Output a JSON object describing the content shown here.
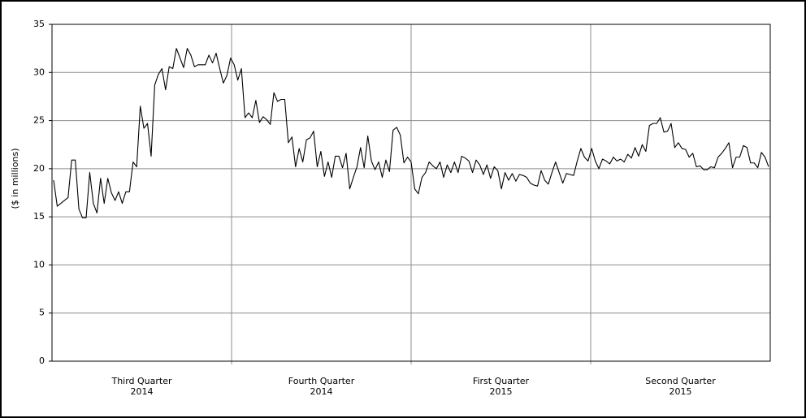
{
  "chart_data": {
    "type": "line",
    "y_label": "($ in millions)",
    "x_labels": [
      "Third Quarter\n2014",
      "Fourth Quarter\n2014",
      "First Quarter\n2015",
      "Second Quarter\n2015"
    ],
    "ylim": [
      0,
      35
    ],
    "yticks": [
      0,
      5,
      10,
      15,
      20,
      25,
      30,
      35
    ],
    "grid": true,
    "color": "#000000",
    "values": [
      18.8,
      16.1,
      16.4,
      16.7,
      17,
      20.9,
      20.9,
      15.8,
      14.9,
      14.9,
      19.6,
      16.4,
      15.4,
      19,
      16.4,
      19,
      17.5,
      16.7,
      17.6,
      16.4,
      17.6,
      17.6,
      20.7,
      20.2,
      26.5,
      24.2,
      24.7,
      21.3,
      28.7,
      29.8,
      30.4,
      28.2,
      30.6,
      30.4,
      32.5,
      31.5,
      30.5,
      32.5,
      31.8,
      30.6,
      30.8,
      30.8,
      30.8,
      31.8,
      31,
      32,
      30.4,
      28.9,
      29.7,
      31.5,
      30.8,
      29.2,
      30.4,
      25.3,
      25.8,
      25.3,
      27.1,
      24.8,
      25.4,
      25.1,
      24.6,
      27.9,
      27,
      27.2,
      27.2,
      22.7,
      23.3,
      20.2,
      22.1,
      20.7,
      23,
      23.2,
      23.9,
      20.2,
      21.8,
      19.2,
      20.7,
      19.1,
      21.3,
      21.3,
      20.1,
      21.6,
      17.9,
      19.1,
      20.2,
      22.2,
      20.1,
      23.4,
      20.8,
      19.9,
      20.7,
      19.1,
      20.9,
      19.7,
      24,
      24.3,
      23.5,
      20.6,
      21.2,
      20.7,
      17.9,
      17.4,
      19.1,
      19.6,
      20.7,
      20.3,
      20,
      20.7,
      19.1,
      20.4,
      19.6,
      20.7,
      19.6,
      21.3,
      21.1,
      20.8,
      19.6,
      20.9,
      20.4,
      19.4,
      20.4,
      19,
      20.2,
      19.8,
      17.9,
      19.6,
      18.8,
      19.5,
      18.7,
      19.4,
      19.3,
      19.1,
      18.5,
      18.3,
      18.2,
      19.8,
      18.8,
      18.4,
      19.6,
      20.7,
      19.6,
      18.5,
      19.5,
      19.4,
      19.3,
      20.8,
      22.1,
      21.2,
      20.8,
      22.1,
      20.8,
      20,
      21,
      20.8,
      20.5,
      21.2,
      20.8,
      21,
      20.7,
      21.5,
      21.1,
      22.2,
      21.3,
      22.5,
      21.8,
      24.5,
      24.7,
      24.7,
      25.3,
      23.8,
      23.9,
      24.7,
      22.2,
      22.7,
      22.1,
      22,
      21.2,
      21.6,
      20.2,
      20.3,
      19.9,
      19.9,
      20.2,
      20.1,
      21.2,
      21.6,
      22.1,
      22.7,
      20.1,
      21.2,
      21.2,
      22.4,
      22.2,
      20.6,
      20.6,
      20.1,
      21.7,
      21.2,
      20.2
    ]
  }
}
